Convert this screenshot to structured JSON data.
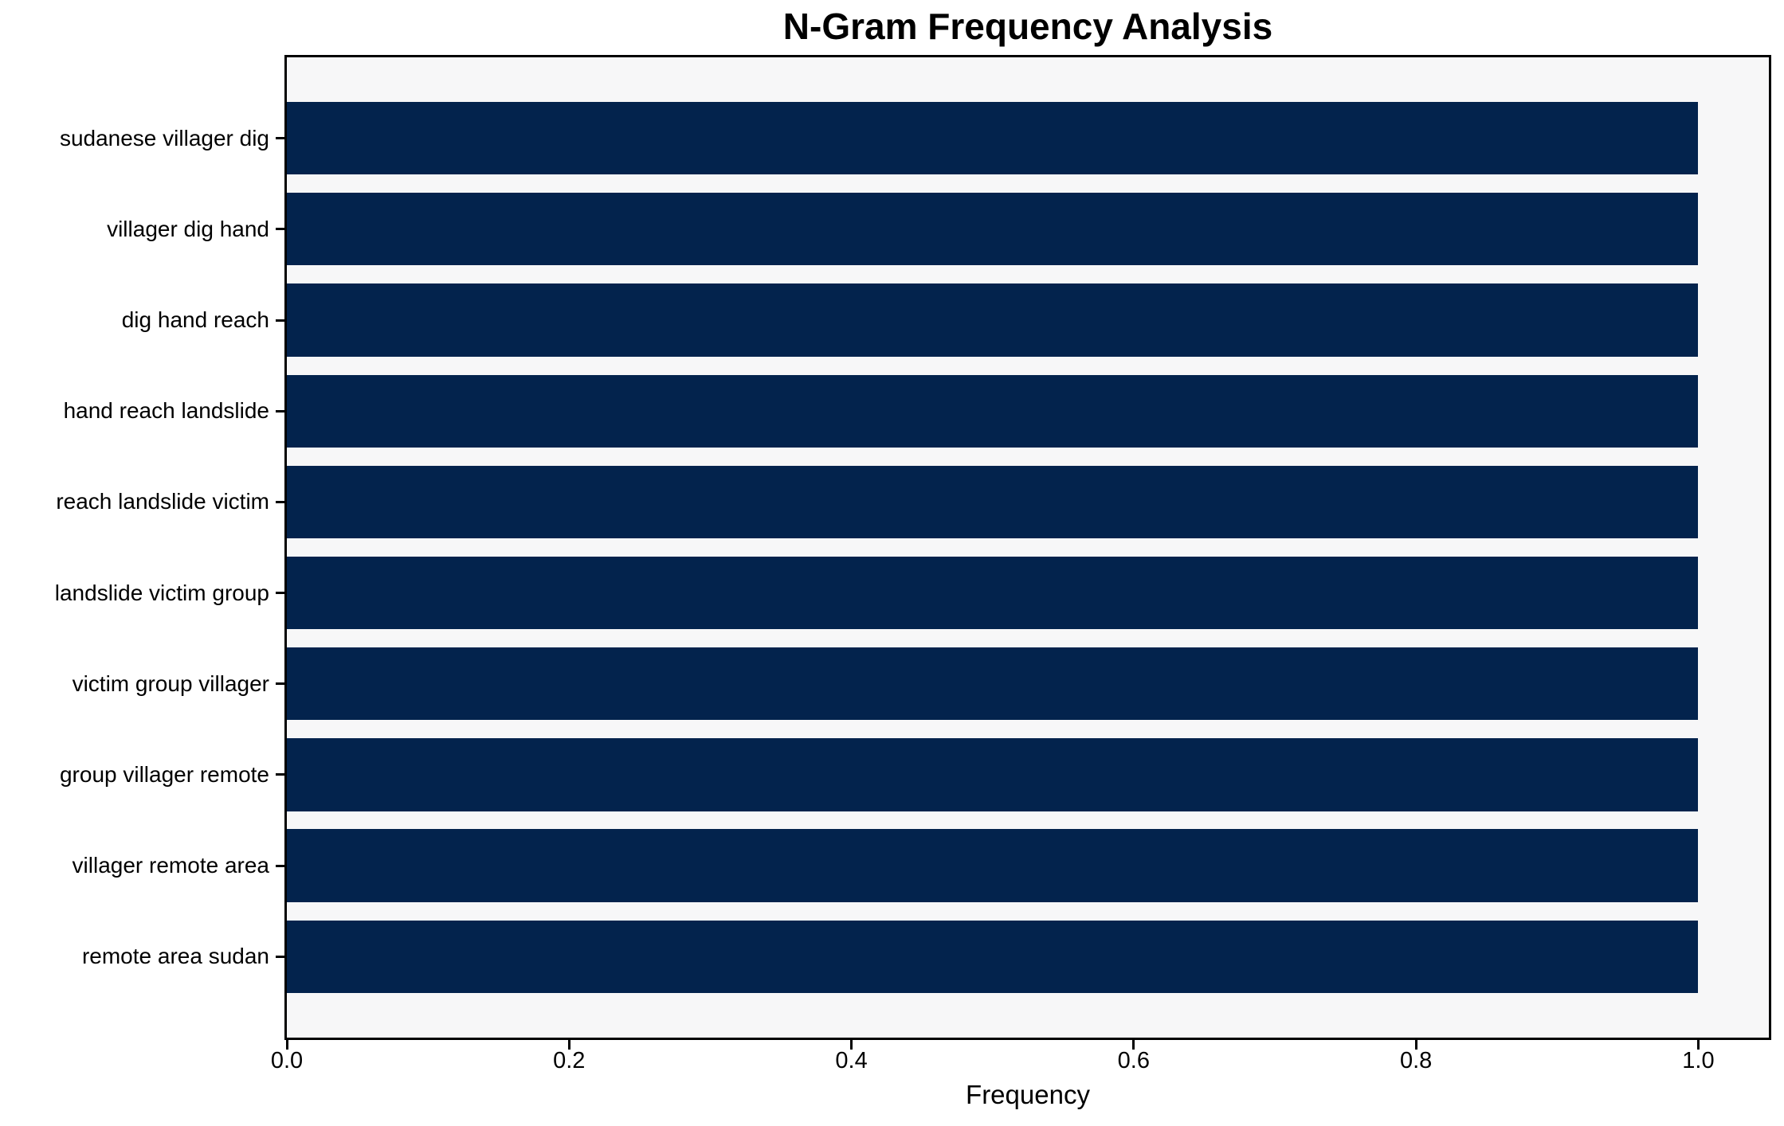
{
  "chart_data": {
    "type": "bar",
    "orientation": "horizontal",
    "title": "N-Gram Frequency Analysis",
    "xlabel": "Frequency",
    "ylabel": "",
    "categories": [
      "sudanese villager dig",
      "villager dig hand",
      "dig hand reach",
      "hand reach landslide",
      "reach landslide victim",
      "landslide victim group",
      "victim group villager",
      "group villager remote",
      "villager remote area",
      "remote area sudan"
    ],
    "values": [
      1.0,
      1.0,
      1.0,
      1.0,
      1.0,
      1.0,
      1.0,
      1.0,
      1.0,
      1.0
    ],
    "xticks": {
      "values": [
        0.0,
        0.2,
        0.4,
        0.6,
        0.8,
        1.0
      ],
      "labels": [
        "0.0",
        "0.2",
        "0.4",
        "0.6",
        "0.8",
        "1.0"
      ]
    },
    "xlim": [
      0,
      1.05
    ],
    "grid": false,
    "legend": null,
    "colors": {
      "bar": "#03234d",
      "plot_background": "#f7f7f8",
      "spine": "#000000",
      "text": "#000000"
    }
  }
}
